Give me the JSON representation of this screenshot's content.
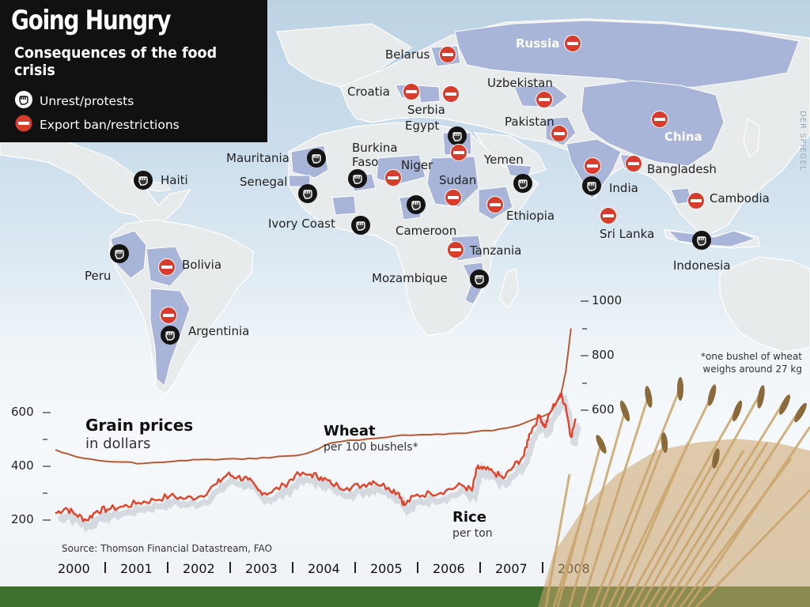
{
  "title": "Going Hungry",
  "subtitle": "Consequences of the food crisis",
  "legend": {
    "unrest": "Unrest/protests",
    "export_ban": "Export ban/restrictions"
  },
  "watermark": "DER SPIEGEL",
  "colors": {
    "affected_country": "#a9b4d9",
    "land": "#e8ecec",
    "ocean": "#c5d8e8",
    "ban_red": "#d63d2c",
    "unrest_black": "#141414",
    "wheat_line": "#e2432a",
    "rice_line": "#b65a35"
  },
  "countries": [
    {
      "name": "Russia",
      "marker": "export-ban"
    },
    {
      "name": "Belarus",
      "marker": "export-ban"
    },
    {
      "name": "Croatia",
      "marker": "export-ban"
    },
    {
      "name": "Serbia",
      "marker": "export-ban"
    },
    {
      "name": "Uzbekistan",
      "marker": "export-ban"
    },
    {
      "name": "Egypt",
      "marker": "unrest+export-ban"
    },
    {
      "name": "Pakistan",
      "marker": "export-ban"
    },
    {
      "name": "China",
      "marker": "export-ban"
    },
    {
      "name": "Mauritania",
      "marker": "unrest"
    },
    {
      "name": "Burkina Faso",
      "marker": "unrest"
    },
    {
      "name": "Niger",
      "marker": "export-ban"
    },
    {
      "name": "Yemen",
      "marker": "unrest"
    },
    {
      "name": "Senegal",
      "marker": "unrest"
    },
    {
      "name": "Sudan",
      "marker": "export-ban"
    },
    {
      "name": "Ethiopia",
      "marker": "export-ban"
    },
    {
      "name": "Bangladesh",
      "marker": "export-ban"
    },
    {
      "name": "India",
      "marker": "unrest+export-ban"
    },
    {
      "name": "Sri Lanka",
      "marker": "export-ban"
    },
    {
      "name": "Cambodia",
      "marker": "export-ban"
    },
    {
      "name": "Indonesia",
      "marker": "unrest"
    },
    {
      "name": "Haiti",
      "marker": "unrest"
    },
    {
      "name": "Ivory Coast",
      "marker": "unrest"
    },
    {
      "name": "Cameroon",
      "marker": "unrest"
    },
    {
      "name": "Tanzania",
      "marker": "export-ban"
    },
    {
      "name": "Mozambique",
      "marker": "unrest"
    },
    {
      "name": "Peru",
      "marker": "unrest"
    },
    {
      "name": "Bolivia",
      "marker": "export-ban"
    },
    {
      "name": "Argentinia",
      "marker": "unrest+export-ban"
    }
  ],
  "chart": {
    "title": "Grain prices",
    "title_sub": "in dollars",
    "source": "Source: Thomson Financial Datastream, FAO",
    "footnote": "*one bushel of wheat weighs around 27 kg",
    "series_labels": {
      "wheat": "Wheat",
      "wheat_sub": "per 100 bushels*",
      "rice": "Rice",
      "rice_sub": "per ton"
    }
  },
  "chart_data": {
    "type": "line",
    "title": "Grain prices",
    "subtitle": "in dollars",
    "x_labels": [
      "2000",
      "2001",
      "2002",
      "2003",
      "2004",
      "2005",
      "2006",
      "2007",
      "2008"
    ],
    "left_axis": {
      "ticks": [
        "200",
        "400",
        "600"
      ],
      "range": [
        150,
        650
      ]
    },
    "right_axis": {
      "ticks": [
        "600",
        "800",
        "1000"
      ],
      "range": [
        400,
        1150
      ]
    },
    "series": [
      {
        "name": "Wheat",
        "unit": "per 100 bushels",
        "axis": "left",
        "points": [
          [
            "2000-01",
            225
          ],
          [
            "2000-03",
            245
          ],
          [
            "2000-05",
            220
          ],
          [
            "2000-07",
            200
          ],
          [
            "2000-09",
            235
          ],
          [
            "2000-11",
            240
          ],
          [
            "2001-02",
            250
          ],
          [
            "2001-05",
            265
          ],
          [
            "2001-08",
            275
          ],
          [
            "2001-11",
            290
          ],
          [
            "2002-02",
            280
          ],
          [
            "2002-05",
            290
          ],
          [
            "2002-08",
            335
          ],
          [
            "2002-10",
            370
          ],
          [
            "2002-12",
            360
          ],
          [
            "2003-02",
            350
          ],
          [
            "2003-04",
            310
          ],
          [
            "2003-06",
            300
          ],
          [
            "2003-09",
            330
          ],
          [
            "2003-11",
            365
          ],
          [
            "2004-02",
            370
          ],
          [
            "2004-04",
            360
          ],
          [
            "2004-06",
            335
          ],
          [
            "2004-09",
            320
          ],
          [
            "2004-12",
            330
          ],
          [
            "2005-02",
            345
          ],
          [
            "2005-05",
            320
          ],
          [
            "2005-07",
            300
          ],
          [
            "2005-08",
            255
          ],
          [
            "2005-10",
            290
          ],
          [
            "2006-01",
            300
          ],
          [
            "2006-04",
            310
          ],
          [
            "2006-07",
            330
          ],
          [
            "2006-09",
            310
          ],
          [
            "2006-10",
            395
          ],
          [
            "2006-11",
            390
          ],
          [
            "2007-01",
            380
          ],
          [
            "2007-03",
            355
          ],
          [
            "2007-05",
            400
          ],
          [
            "2007-07",
            440
          ],
          [
            "2007-08",
            520
          ],
          [
            "2007-10",
            590
          ],
          [
            "2007-11",
            545
          ],
          [
            "2007-12",
            600
          ],
          [
            "2008-02",
            670
          ],
          [
            "2008-03",
            625
          ],
          [
            "2008-04",
            510
          ],
          [
            "2008-05",
            575
          ]
        ]
      },
      {
        "name": "Rice",
        "unit": "per ton",
        "axis": "right",
        "points": [
          [
            "2000-01",
            455
          ],
          [
            "2000-06",
            425
          ],
          [
            "2001-01",
            410
          ],
          [
            "2001-06",
            405
          ],
          [
            "2002-01",
            415
          ],
          [
            "2002-06",
            420
          ],
          [
            "2003-01",
            420
          ],
          [
            "2003-06",
            425
          ],
          [
            "2004-01",
            440
          ],
          [
            "2004-06",
            480
          ],
          [
            "2005-01",
            495
          ],
          [
            "2005-06",
            505
          ],
          [
            "2006-01",
            510
          ],
          [
            "2006-06",
            515
          ],
          [
            "2007-01",
            525
          ],
          [
            "2007-06",
            545
          ],
          [
            "2007-12",
            590
          ],
          [
            "2008-02",
            650
          ],
          [
            "2008-03",
            740
          ],
          [
            "2008-04",
            900
          ]
        ]
      }
    ]
  }
}
